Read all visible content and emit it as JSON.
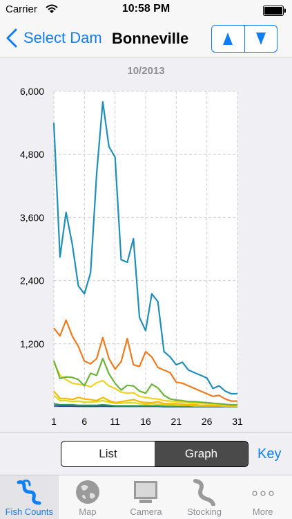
{
  "status": {
    "carrier": "Carrier",
    "time": "10:58 PM"
  },
  "nav": {
    "back_label": "Select Dam",
    "title": "Bonneville"
  },
  "colors": {
    "accent": "#0f7ef4"
  },
  "chart_data": {
    "type": "line",
    "title": "10/2013",
    "xlabel": "",
    "ylabel": "",
    "x": [
      1,
      2,
      3,
      4,
      5,
      6,
      7,
      8,
      9,
      10,
      11,
      12,
      13,
      14,
      15,
      16,
      17,
      18,
      19,
      20,
      21,
      22,
      23,
      24,
      25,
      26,
      27,
      28,
      29,
      30,
      31
    ],
    "xticks": [
      "1",
      "6",
      "11",
      "16",
      "21",
      "26",
      "31"
    ],
    "yticks": [
      "1,200",
      "2,400",
      "3,600",
      "4,800",
      "6,000"
    ],
    "xlim": [
      1,
      31
    ],
    "ylim": [
      0,
      6000
    ],
    "grid": true,
    "series": [
      {
        "color": "#1f8fba",
        "values": [
          5400,
          2850,
          3700,
          3100,
          2300,
          2150,
          2550,
          4450,
          5800,
          4950,
          4750,
          2800,
          2750,
          3200,
          1700,
          1450,
          2150,
          2000,
          1050,
          950,
          800,
          850,
          700,
          650,
          600,
          550,
          350,
          400,
          300,
          250,
          250
        ]
      },
      {
        "color": "#f07a1e",
        "values": [
          1500,
          1350,
          1650,
          1350,
          1150,
          870,
          820,
          920,
          1320,
          920,
          720,
          860,
          1300,
          800,
          770,
          1050,
          950,
          750,
          700,
          650,
          470,
          450,
          400,
          350,
          300,
          250,
          200,
          220,
          150,
          110,
          110
        ]
      },
      {
        "color": "#6bb33a",
        "values": [
          880,
          540,
          570,
          560,
          520,
          400,
          640,
          600,
          920,
          630,
          450,
          320,
          410,
          400,
          300,
          260,
          430,
          360,
          220,
          150,
          130,
          120,
          100,
          100,
          90,
          80,
          70,
          60,
          50,
          40,
          40
        ]
      },
      {
        "color": "#f0d21e",
        "values": [
          850,
          600,
          520,
          450,
          430,
          420,
          380,
          460,
          500,
          400,
          350,
          280,
          260,
          270,
          200,
          180,
          160,
          150,
          120,
          110,
          100,
          90,
          80,
          70,
          70,
          60,
          50,
          50,
          40,
          40,
          30
        ]
      },
      {
        "color": "#f5b700",
        "values": [
          300,
          160,
          160,
          140,
          180,
          150,
          140,
          120,
          180,
          120,
          80,
          100,
          120,
          140,
          100,
          80,
          80,
          100,
          60,
          60,
          60,
          50,
          40,
          40,
          30,
          30,
          30,
          20,
          20,
          20,
          20
        ]
      },
      {
        "color": "#d9d91a",
        "values": [
          220,
          120,
          120,
          100,
          110,
          90,
          90,
          100,
          120,
          90,
          70,
          70,
          80,
          80,
          60,
          50,
          60,
          50,
          40,
          40,
          30,
          30,
          30,
          20,
          20,
          20,
          20,
          20,
          10,
          10,
          10
        ]
      },
      {
        "color": "#2a9a5a",
        "values": [
          60,
          40,
          40,
          40,
          30,
          30,
          30,
          30,
          40,
          30,
          20,
          20,
          20,
          20,
          20,
          20,
          20,
          20,
          10,
          10,
          10,
          10,
          10,
          10,
          10,
          10,
          10,
          10,
          10,
          10,
          10
        ]
      },
      {
        "color": "#2a4a9a",
        "values": [
          20,
          15,
          15,
          15,
          10,
          10,
          10,
          10,
          15,
          10,
          10,
          10,
          10,
          10,
          10,
          10,
          10,
          10,
          5,
          5,
          5,
          5,
          5,
          5,
          5,
          5,
          5,
          5,
          5,
          5,
          5
        ]
      }
    ]
  },
  "view_toggle": {
    "options": [
      "List",
      "Graph"
    ],
    "selected": "Graph"
  },
  "key_label": "Key",
  "tabs": [
    {
      "label": "Fish Counts",
      "icon": "fish-ladder-icon",
      "active": true
    },
    {
      "label": "Map",
      "icon": "globe-icon",
      "active": false
    },
    {
      "label": "Camera",
      "icon": "monitor-icon",
      "active": false
    },
    {
      "label": "Stocking",
      "icon": "fish-icon",
      "active": false
    },
    {
      "label": "More",
      "icon": "more-dots-icon",
      "active": false
    }
  ]
}
